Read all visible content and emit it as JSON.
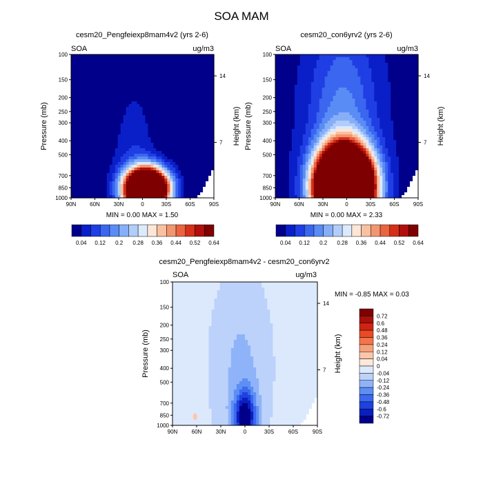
{
  "figure": {
    "title": "SOA MAM"
  },
  "colors": {
    "scale_11": [
      "#00008a",
      "#0a1fc8",
      "#1f3ee3",
      "#3a66f0",
      "#5a8cf5",
      "#86aff8",
      "#b1cdfa",
      "#dceafd",
      "#fde6d6",
      "#f9c1a1",
      "#f39670",
      "#ea6440",
      "#d63018",
      "#b00f0d",
      "#7f0000"
    ],
    "scale_diff": [
      "#7f0000",
      "#a8100c",
      "#cf2412",
      "#ea4a25",
      "#f4744b",
      "#f8a07a",
      "#fbc6aa",
      "#fde8da",
      "#dce9fd",
      "#bcd2fb",
      "#8fb3f8",
      "#5d8ef4",
      "#3b68ef",
      "#1e42dd",
      "#0b1fbf",
      "#00008a"
    ]
  },
  "panels": {
    "p1": {
      "title": "cesm20_Pengfeiexp8mam4v2 (yrs 2-6)",
      "var_label": "SOA",
      "unit_label": "ug/m3",
      "min_max": "MIN =  0.00  MAX =  1.50",
      "ylabel_left": "Pressure (mb)",
      "ylabel_right": "Height (km)"
    },
    "p2": {
      "title": "cesm20_con6yrv2 (yrs 2-6)",
      "var_label": "SOA",
      "unit_label": "ug/m3",
      "min_max": "MIN =  0.00  MAX =  2.33",
      "ylabel_left": "Pressure (mb)",
      "ylabel_right": "Height (km)"
    },
    "p3": {
      "title": "cesm20_Pengfeiexp8mam4v2 - cesm20_con6yrv2",
      "var_label": "SOA",
      "unit_label": "ug/m3",
      "min_max": "MIN =  -0.85  MAX =   0.03",
      "ylabel_left": "Pressure (mb)",
      "ylabel_right": "Height (km)"
    }
  },
  "chart_data": [
    {
      "type": "heatmap",
      "title": "cesm20_Pengfeiexp8mam4v2 (yrs 2-6)",
      "xlabel": "",
      "ylabel": "Pressure (mb)",
      "ylabel_right": "Height (km)",
      "x_ticks": [
        "90N",
        "60N",
        "30N",
        "0",
        "30S",
        "60S",
        "90S"
      ],
      "y_ticks": [
        "100",
        "150",
        "200",
        "250",
        "300",
        "400",
        "500",
        "700",
        "850",
        "1000"
      ],
      "y_right_ticks": [
        "14",
        "7"
      ],
      "y_scale": "log",
      "xlim": [
        90,
        -90
      ],
      "ylim": [
        1000,
        100
      ],
      "background_level": 0.0,
      "blobs": [
        {
          "lat": -5,
          "p": 870,
          "slat": 18,
          "sp": 0.22,
          "amp": 1.5
        },
        {
          "lat": 12,
          "p": 600,
          "slat": 22,
          "sp": 0.55,
          "amp": 0.05
        },
        {
          "lat": 10,
          "p": 300,
          "slat": 16,
          "sp": 0.8,
          "amp": 0.035
        }
      ],
      "missing": [
        {
          "lat_from": -63,
          "lat_to": -90,
          "p_from": 600,
          "p_to": 1000
        }
      ],
      "min": 0.0,
      "max": 1.5,
      "levels": [
        0.04,
        0.08,
        0.12,
        0.16,
        0.2,
        0.24,
        0.28,
        0.32,
        0.36,
        0.4,
        0.44,
        0.48,
        0.52,
        0.56,
        0.64
      ],
      "colorbar_labels": [
        "0.04",
        "0.12",
        "0.2",
        "0.28",
        "0.36",
        "0.44",
        "0.52",
        "0.64"
      ]
    },
    {
      "type": "heatmap",
      "title": "cesm20_con6yrv2 (yrs 2-6)",
      "xlabel": "",
      "ylabel": "Pressure (mb)",
      "ylabel_right": "Height (km)",
      "x_ticks": [
        "90N",
        "60N",
        "30N",
        "0",
        "30S",
        "60S",
        "90S"
      ],
      "y_ticks": [
        "100",
        "150",
        "200",
        "250",
        "300",
        "400",
        "500",
        "700",
        "850",
        "1000"
      ],
      "y_right_ticks": [
        "14",
        "7"
      ],
      "y_scale": "log",
      "xlim": [
        90,
        -90
      ],
      "ylim": [
        1000,
        100
      ],
      "background_level": 0.02,
      "blobs": [
        {
          "lat": 3,
          "p": 850,
          "slat": 22,
          "sp": 0.4,
          "amp": 2.3
        },
        {
          "lat": 5,
          "p": 300,
          "slat": 30,
          "sp": 1.1,
          "amp": 0.16
        }
      ],
      "missing": [
        {
          "lat_from": -63,
          "lat_to": -90,
          "p_from": 600,
          "p_to": 1000
        }
      ],
      "min": 0.0,
      "max": 2.33,
      "levels": [
        0.04,
        0.08,
        0.12,
        0.16,
        0.2,
        0.24,
        0.28,
        0.32,
        0.36,
        0.4,
        0.44,
        0.48,
        0.52,
        0.56,
        0.64
      ],
      "colorbar_labels": [
        "0.04",
        "0.12",
        "0.2",
        "0.28",
        "0.36",
        "0.44",
        "0.52",
        "0.64"
      ]
    },
    {
      "type": "heatmap",
      "title": "cesm20_Pengfeiexp8mam4v2 - cesm20_con6yrv2",
      "xlabel": "",
      "ylabel": "Pressure (mb)",
      "ylabel_right": "Height (km)",
      "x_ticks": [
        "90N",
        "60N",
        "30N",
        "0",
        "30S",
        "60S",
        "90S"
      ],
      "y_ticks": [
        "100",
        "150",
        "200",
        "250",
        "300",
        "400",
        "500",
        "700",
        "850",
        "1000"
      ],
      "y_right_ticks": [
        "14",
        "7"
      ],
      "y_scale": "log",
      "xlim": [
        90,
        -90
      ],
      "ylim": [
        1000,
        100
      ],
      "background_level": -0.02,
      "blobs": [
        {
          "lat": 0,
          "p": 880,
          "slat": 9,
          "sp": 0.3,
          "amp": -0.83
        },
        {
          "lat": 5,
          "p": 400,
          "slat": 22,
          "sp": 0.9,
          "amp": -0.12
        }
      ],
      "positive_spot": {
        "lat": 62,
        "p": 870,
        "value": 0.03
      },
      "missing": [
        {
          "lat_from": -63,
          "lat_to": -90,
          "p_from": 600,
          "p_to": 1000
        }
      ],
      "min": -0.85,
      "max": 0.03,
      "levels": [
        0.72,
        0.6,
        0.48,
        0.36,
        0.24,
        0.12,
        0.04,
        0,
        -0.04,
        -0.12,
        -0.24,
        -0.36,
        -0.48,
        -0.6,
        -0.72
      ],
      "colorbar_labels": [
        "0.72",
        "0.6",
        "0.48",
        "0.36",
        "0.24",
        "0.12",
        "0.04",
        "0",
        "-0.04",
        "-0.12",
        "-0.24",
        "-0.36",
        "-0.48",
        "-0.6",
        "-0.72"
      ]
    }
  ]
}
